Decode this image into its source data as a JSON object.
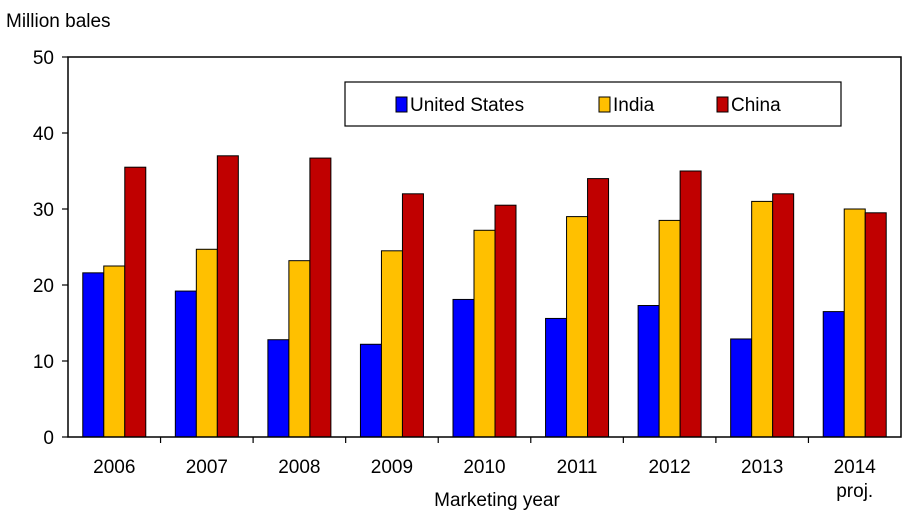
{
  "chart_data": {
    "type": "bar",
    "ylabel": "Million bales",
    "xlabel": "Marketing year",
    "ylim": [
      0,
      50
    ],
    "yticks": [
      0,
      10,
      20,
      30,
      40,
      50
    ],
    "categories": [
      [
        "2006"
      ],
      [
        "2007"
      ],
      [
        "2008"
      ],
      [
        "2009"
      ],
      [
        "2010"
      ],
      [
        "2011"
      ],
      [
        "2012"
      ],
      [
        "2013"
      ],
      [
        "2014",
        "proj."
      ]
    ],
    "series": [
      {
        "name": "United States",
        "color": "#0000ff",
        "values": [
          21.6,
          19.2,
          12.8,
          12.2,
          18.1,
          15.6,
          17.3,
          12.9,
          16.5
        ]
      },
      {
        "name": "India",
        "color": "#ffc000",
        "values": [
          22.5,
          24.7,
          23.2,
          24.5,
          27.2,
          29.0,
          28.5,
          31.0,
          30.0
        ]
      },
      {
        "name": "China",
        "color": "#c00000",
        "values": [
          35.5,
          37.0,
          36.7,
          32.0,
          30.5,
          34.0,
          35.0,
          32.0,
          29.5
        ]
      }
    ],
    "legend": "top-right, inside plot",
    "grid": false
  }
}
